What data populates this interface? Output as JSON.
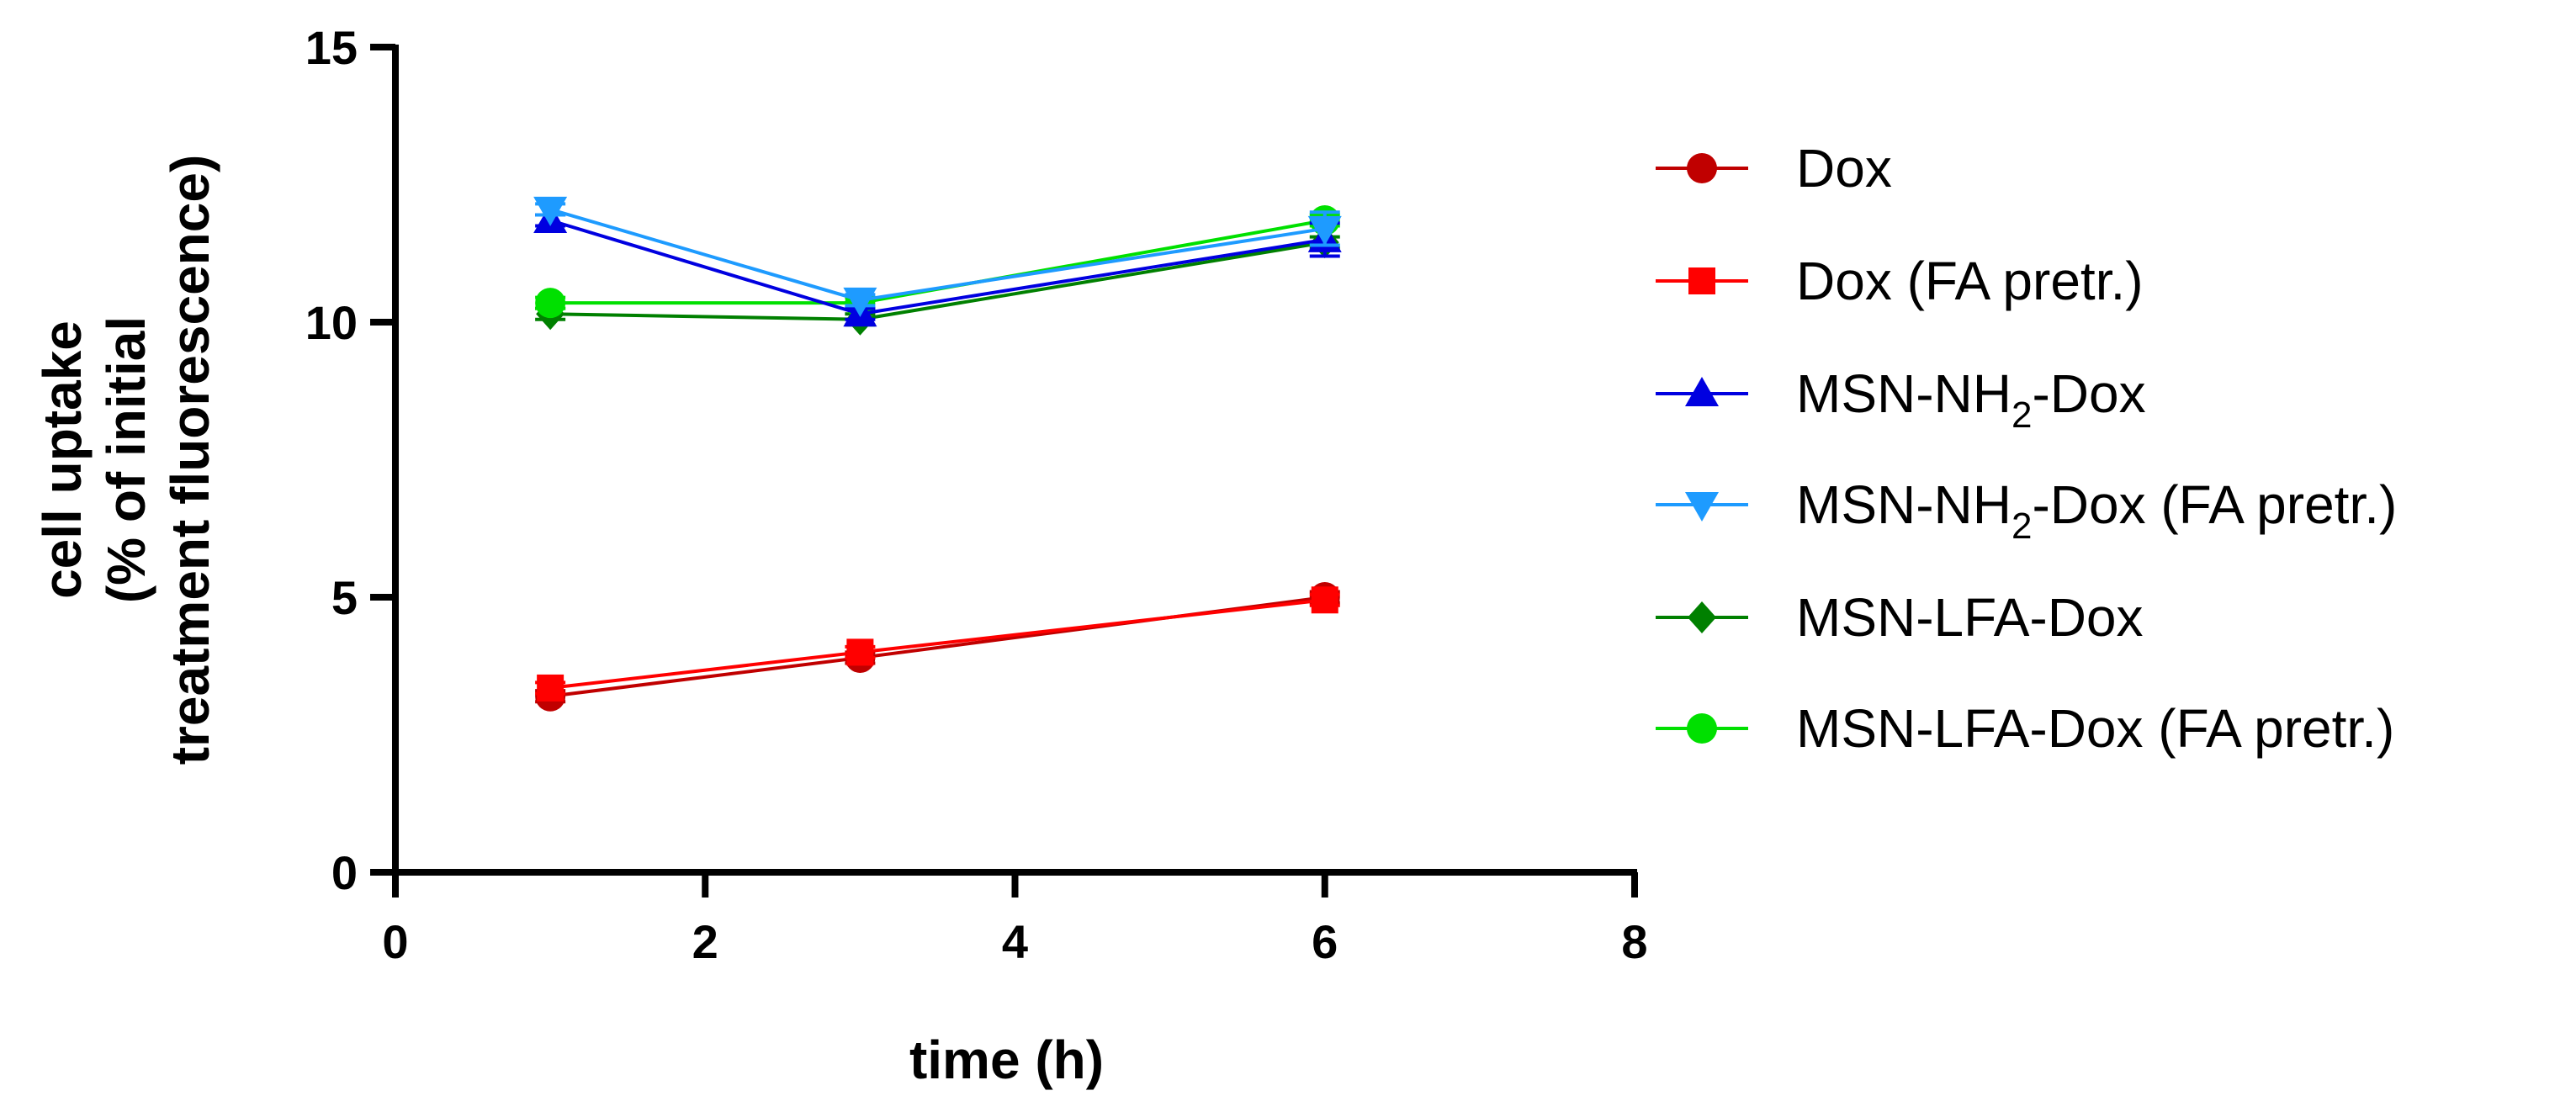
{
  "chart_data": {
    "type": "line",
    "title": "",
    "xlabel": "time (h)",
    "ylabel_lines": [
      "cell uptake",
      "(% of initial",
      "treatment fluorescence)"
    ],
    "xlim": [
      0,
      8
    ],
    "ylim": [
      0,
      15
    ],
    "xticks": [
      0,
      2,
      4,
      6,
      8
    ],
    "yticks": [
      0,
      5,
      10,
      15
    ],
    "grid": false,
    "legend_position": "right",
    "series": [
      {
        "name": "Dox",
        "label_parts": [
          "Dox"
        ],
        "color": "#C00000",
        "marker": "circle",
        "x": [
          1,
          3,
          6
        ],
        "y": [
          3.2,
          3.9,
          5.0
        ],
        "err": [
          0.1,
          0.1,
          0.1
        ]
      },
      {
        "name": "Dox (FA pretr.)",
        "label_parts": [
          "Dox (FA pretr.)"
        ],
        "color": "#FF0000",
        "marker": "square",
        "x": [
          1,
          3,
          6
        ],
        "y": [
          3.35,
          4.0,
          4.95
        ],
        "err": [
          0.1,
          0.1,
          0.1
        ]
      },
      {
        "name": "MSN-NH2-Dox",
        "label_parts": [
          "MSN-NH",
          "2",
          "-Dox"
        ],
        "color": "#0000E0",
        "marker": "triangle-up",
        "x": [
          1,
          3,
          6
        ],
        "y": [
          11.85,
          10.15,
          11.5
        ],
        "err": [
          0.1,
          0.1,
          0.3
        ]
      },
      {
        "name": "MSN-NH2-Dox (FA pretr.)",
        "label_parts": [
          "MSN-NH",
          "2",
          "-Dox (FA pretr.)"
        ],
        "color": "#1E9BFF",
        "marker": "triangle-down",
        "x": [
          1,
          3,
          6
        ],
        "y": [
          12.05,
          10.4,
          11.7
        ],
        "err": [
          0.1,
          0.1,
          0.3
        ]
      },
      {
        "name": "MSN-LFA-Dox",
        "label_parts": [
          "MSN-LFA-Dox"
        ],
        "color": "#008000",
        "marker": "diamond",
        "x": [
          1,
          3,
          6
        ],
        "y": [
          10.15,
          10.05,
          11.45
        ],
        "err": [
          0.1,
          0.1,
          0.1
        ]
      },
      {
        "name": "MSN-LFA-Dox (FA pretr.)",
        "label_parts": [
          "MSN-LFA-Dox (FA pretr.)"
        ],
        "color": "#00E000",
        "marker": "circle",
        "x": [
          1,
          3,
          6
        ],
        "y": [
          10.35,
          10.35,
          11.85
        ],
        "err": [
          0.1,
          0.1,
          0.1
        ]
      }
    ]
  }
}
